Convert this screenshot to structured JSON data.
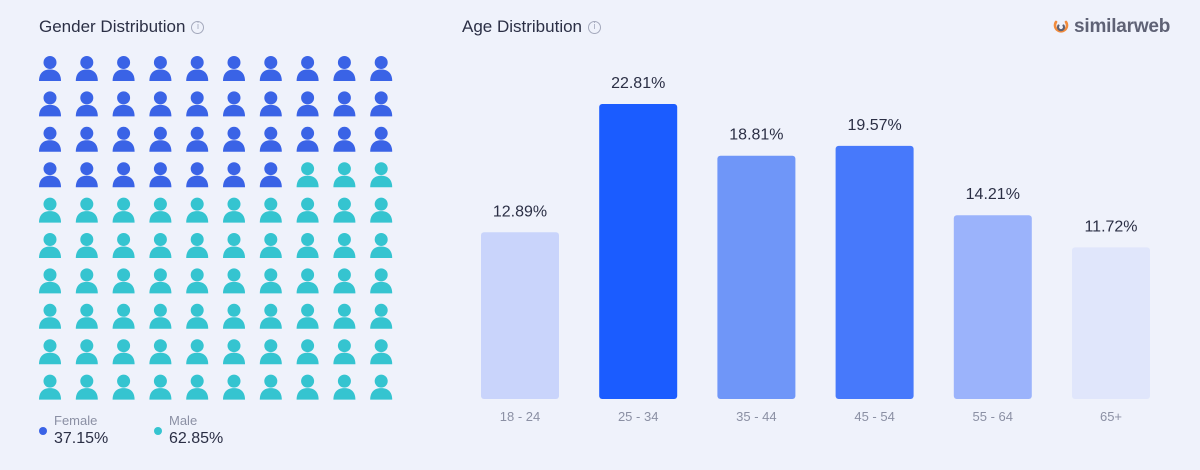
{
  "gender_panel": {
    "title": "Gender Distribution",
    "info_icon": "info-icon",
    "legend": [
      {
        "label": "Female",
        "value": "37.15%",
        "color": "#3a63e6"
      },
      {
        "label": "Male",
        "value": "62.85%",
        "color": "#35c4d0"
      }
    ]
  },
  "age_panel": {
    "title": "Age Distribution",
    "info_icon": "info-icon"
  },
  "brand": {
    "name": "similarweb",
    "icon": "similarweb-logo-icon"
  },
  "chart_data": [
    {
      "type": "pictograph",
      "title": "Gender Distribution",
      "categories": [
        "Female",
        "Male"
      ],
      "values": [
        37.15,
        62.85
      ],
      "units": 100,
      "colors": [
        "#3a63e6",
        "#35c4d0"
      ]
    },
    {
      "type": "bar",
      "title": "Age Distribution",
      "categories": [
        "18 - 24",
        "25 - 34",
        "35 - 44",
        "45 - 54",
        "55 - 64",
        "65+"
      ],
      "values": [
        12.89,
        22.81,
        18.81,
        19.57,
        14.21,
        11.72
      ],
      "value_labels": [
        "12.89%",
        "22.81%",
        "18.81%",
        "19.57%",
        "14.21%",
        "11.72%"
      ],
      "colors": [
        "#c9d4fb",
        "#1b5cff",
        "#6f96f8",
        "#4779fb",
        "#9bb3fb",
        "#e0e6fb"
      ],
      "ylim": [
        0,
        25
      ],
      "grid": false,
      "legend": "none"
    }
  ]
}
